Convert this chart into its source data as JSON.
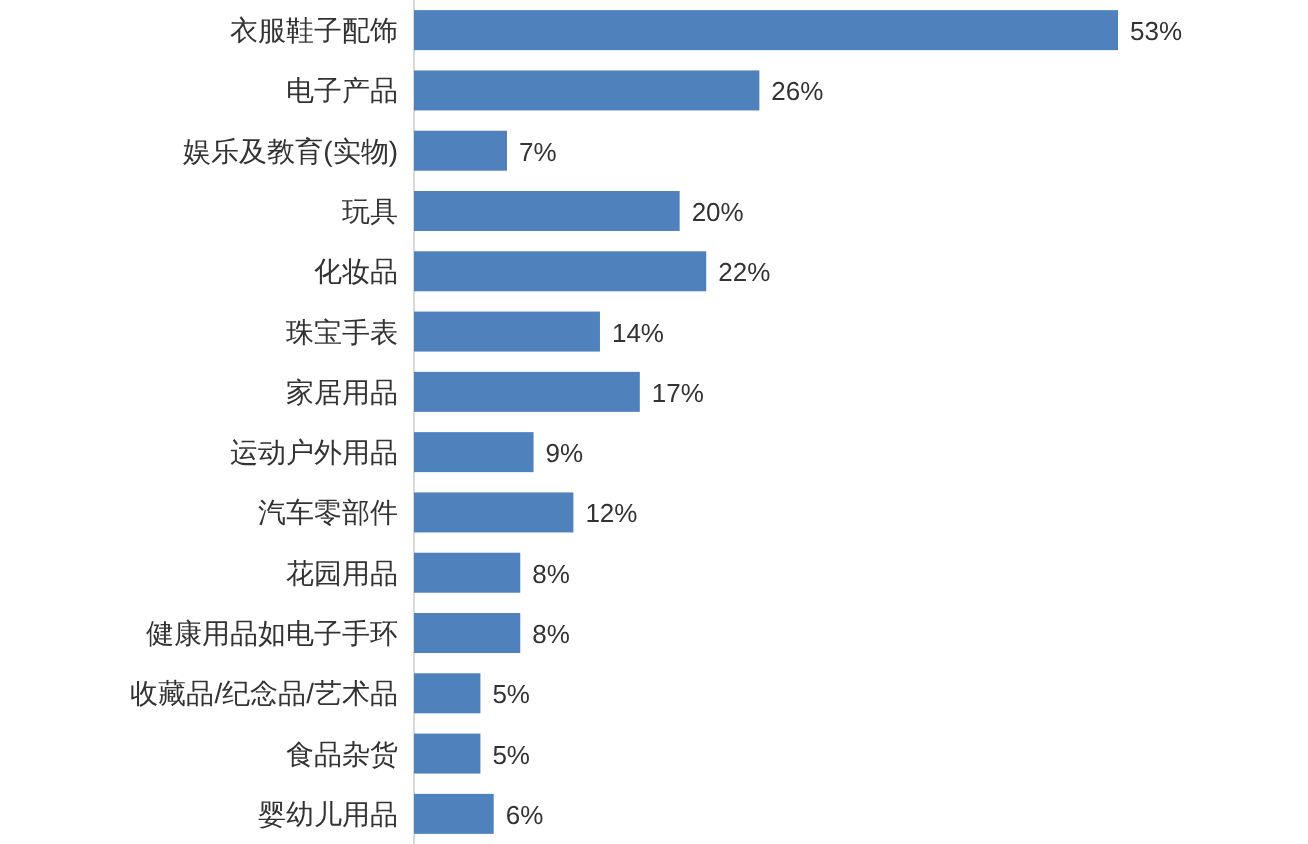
{
  "chart_data": {
    "type": "bar",
    "orientation": "horizontal",
    "categories": [
      "衣服鞋子配饰",
      "电子产品",
      "娱乐及教育(实物)",
      "玩具",
      "化妆品",
      "珠宝手表",
      "家居用品",
      "运动户外用品",
      "汽车零部件",
      "花园用品",
      "健康用品如电子手环",
      "收藏品/纪念品/艺术品",
      "食品杂货",
      "婴幼儿用品"
    ],
    "values": [
      53,
      26,
      7,
      20,
      22,
      14,
      17,
      9,
      12,
      8,
      8,
      5,
      5,
      6
    ],
    "value_labels": [
      "53%",
      "26%",
      "7%",
      "20%",
      "22%",
      "14%",
      "17%",
      "9%",
      "12%",
      "8%",
      "8%",
      "5%",
      "5%",
      "6%"
    ],
    "color": "#4f81bd"
  }
}
